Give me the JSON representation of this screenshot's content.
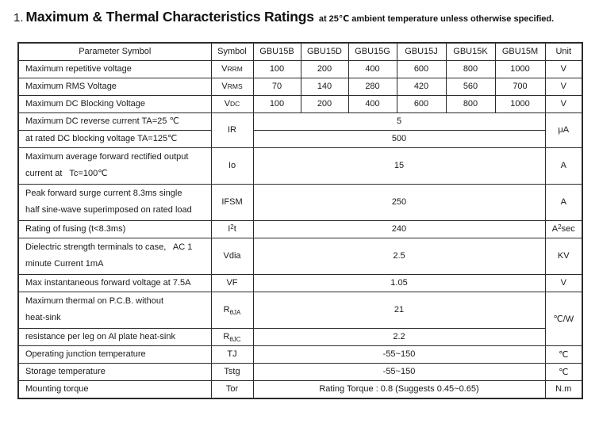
{
  "title": {
    "number": "1.",
    "main": "Maximum & Thermal Characteristics Ratings",
    "suffix": "at 25℃ ambient temperature unless otherwise specified."
  },
  "table": {
    "header": [
      "Parameter Symbol",
      "Symbol",
      "GBU15B",
      "GBU15D",
      "GBU15G",
      "GBU15J",
      "GBU15K",
      "GBU15M",
      "Unit"
    ],
    "rows": [
      {
        "h2": false,
        "cells": [
          {
            "role": "param",
            "text": "Maximum repetitive voltage"
          },
          {
            "role": "symbol",
            "parts": [
              [
                "V",
                ""
              ],
              [
                "RRM",
                "sm"
              ]
            ]
          },
          {
            "role": "value",
            "text": "100"
          },
          {
            "role": "value",
            "text": "200"
          },
          {
            "role": "value",
            "text": "400"
          },
          {
            "role": "value",
            "text": "600"
          },
          {
            "role": "value",
            "text": "800"
          },
          {
            "role": "value",
            "text": "1000"
          },
          {
            "role": "unit",
            "text": "V"
          }
        ]
      },
      {
        "h2": false,
        "cells": [
          {
            "role": "param",
            "text": "Maximum RMS Voltage"
          },
          {
            "role": "symbol",
            "parts": [
              [
                "V",
                ""
              ],
              [
                "RMS",
                "sm"
              ]
            ]
          },
          {
            "role": "value",
            "text": "70"
          },
          {
            "role": "value",
            "text": "140"
          },
          {
            "role": "value",
            "text": "280"
          },
          {
            "role": "value",
            "text": "420"
          },
          {
            "role": "value",
            "text": "560"
          },
          {
            "role": "value",
            "text": "700"
          },
          {
            "role": "unit",
            "text": "V"
          }
        ]
      },
      {
        "h2": false,
        "cells": [
          {
            "role": "param",
            "text": "Maximum DC Blocking Voltage"
          },
          {
            "role": "symbol",
            "parts": [
              [
                "V",
                ""
              ],
              [
                "DC",
                "sm"
              ]
            ]
          },
          {
            "role": "value",
            "text": "100"
          },
          {
            "role": "value",
            "text": "200"
          },
          {
            "role": "value",
            "text": "400"
          },
          {
            "role": "value",
            "text": "600"
          },
          {
            "role": "value",
            "text": "800"
          },
          {
            "role": "value",
            "text": "1000"
          },
          {
            "role": "unit",
            "text": "V"
          }
        ]
      },
      {
        "h2": false,
        "cells": [
          {
            "role": "param",
            "text": "Maximum DC reverse current TA=25 ℃"
          },
          {
            "role": "symbol",
            "text": "IR",
            "rs": 2
          },
          {
            "role": "value",
            "text": "5",
            "cs": 6
          },
          {
            "role": "unit",
            "text": "μA",
            "rs": 2
          }
        ]
      },
      {
        "h2": false,
        "cells": [
          {
            "role": "param",
            "text": "at rated DC blocking voltage TA=125℃"
          },
          {
            "role": "value",
            "text": "500",
            "cs": 6
          }
        ]
      },
      {
        "h2": true,
        "cells": [
          {
            "role": "param",
            "lines": [
              "Maximum average forward rectified output",
              "current at   Tc=100℃"
            ]
          },
          {
            "role": "symbol",
            "text": "Io"
          },
          {
            "role": "value",
            "text": "15",
            "cs": 6
          },
          {
            "role": "unit",
            "text": "A"
          }
        ]
      },
      {
        "h2": true,
        "cells": [
          {
            "role": "param",
            "lines": [
              "Peak forward surge current 8.3ms single",
              "half sine-wave superimposed on rated load"
            ]
          },
          {
            "role": "symbol",
            "text": "IFSM"
          },
          {
            "role": "value",
            "text": "250",
            "cs": 6
          },
          {
            "role": "unit",
            "text": "A"
          }
        ]
      },
      {
        "h2": false,
        "cells": [
          {
            "role": "param",
            "text": "Rating of fusing (t<8.3ms)"
          },
          {
            "role": "symbol",
            "parts": [
              [
                "I",
                ""
              ],
              [
                "2",
                "sup"
              ],
              [
                "t",
                ""
              ]
            ]
          },
          {
            "role": "value",
            "text": "240",
            "cs": 6
          },
          {
            "role": "unit",
            "parts": [
              [
                "A",
                ""
              ],
              [
                "2",
                "sup"
              ],
              [
                "sec",
                ""
              ]
            ]
          }
        ]
      },
      {
        "h2": true,
        "cells": [
          {
            "role": "param",
            "lines": [
              "Dielectric strength terminals to case,   AC 1",
              "minute Current 1mA"
            ]
          },
          {
            "role": "symbol",
            "text": "Vdia"
          },
          {
            "role": "value",
            "text": "2.5",
            "cs": 6
          },
          {
            "role": "unit",
            "text": "KV"
          }
        ]
      },
      {
        "h2": false,
        "cells": [
          {
            "role": "param",
            "text": "Max instantaneous forward voltage at 7.5A"
          },
          {
            "role": "symbol",
            "text": "VF"
          },
          {
            "role": "value",
            "text": "1.05",
            "cs": 6
          },
          {
            "role": "unit",
            "text": "V"
          }
        ]
      },
      {
        "h2": true,
        "cells": [
          {
            "role": "param",
            "lines": [
              "Maximum thermal on P.C.B. without",
              "heat-sink"
            ]
          },
          {
            "role": "symbol",
            "parts": [
              [
                "R",
                ""
              ],
              [
                "θJA",
                "sub"
              ]
            ]
          },
          {
            "role": "value",
            "text": "21",
            "cs": 6
          },
          {
            "role": "unit",
            "text": "℃/W",
            "rs": 2
          }
        ]
      },
      {
        "h2": false,
        "cells": [
          {
            "role": "param",
            "text": "resistance per leg on Al plate heat-sink"
          },
          {
            "role": "symbol",
            "parts": [
              [
                "R",
                ""
              ],
              [
                "θJC",
                "sub"
              ]
            ]
          },
          {
            "role": "value",
            "text": "2.2",
            "cs": 6
          }
        ]
      },
      {
        "h2": false,
        "cells": [
          {
            "role": "param",
            "text": "Operating junction temperature"
          },
          {
            "role": "symbol",
            "text": "TJ"
          },
          {
            "role": "value",
            "text": "-55~150",
            "cs": 6
          },
          {
            "role": "unit",
            "text": "℃"
          }
        ]
      },
      {
        "h2": false,
        "cells": [
          {
            "role": "param",
            "text": "Storage temperature"
          },
          {
            "role": "symbol",
            "text": "Tstg"
          },
          {
            "role": "value",
            "text": "-55~150",
            "cs": 6
          },
          {
            "role": "unit",
            "text": "℃"
          }
        ]
      },
      {
        "h2": false,
        "cells": [
          {
            "role": "param",
            "text": "Mounting torque"
          },
          {
            "role": "symbol",
            "text": "Tor"
          },
          {
            "role": "value",
            "text": "Rating Torque : 0.8 (Suggests 0.45~0.65)",
            "cs": 6
          },
          {
            "role": "unit",
            "text": "N.m"
          }
        ]
      }
    ]
  }
}
